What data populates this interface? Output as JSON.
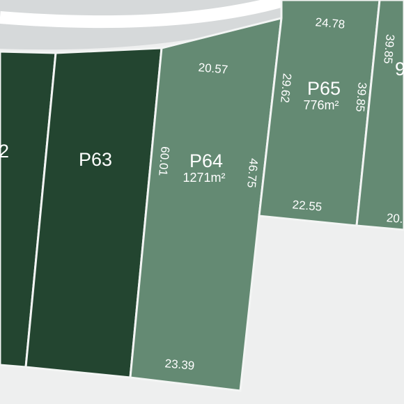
{
  "colors": {
    "background": "#eeefef",
    "road": "#d6d9da",
    "road_edge": "#c3c7c8",
    "plot_sold": "#234530",
    "plot_available": "#648a73",
    "plot_border": "#f3f5f4"
  },
  "plots": {
    "p62": {
      "label": "2",
      "status": "sold"
    },
    "p63": {
      "label": "P63",
      "status": "sold"
    },
    "p64": {
      "label": "P64",
      "area": "1271m²",
      "status": "available",
      "dims": {
        "top": "20.57",
        "left": "60.01",
        "right": "46.75",
        "bottom": "23.39"
      }
    },
    "p65": {
      "label": "P65",
      "area": "776m²",
      "status": "available",
      "dims": {
        "top": "24.78",
        "left": "29.62",
        "right": "39.85",
        "bottom": "22.55"
      }
    },
    "p66": {
      "label": "9",
      "status": "available",
      "dims": {
        "left": "39.85",
        "bottom": "20."
      }
    }
  }
}
